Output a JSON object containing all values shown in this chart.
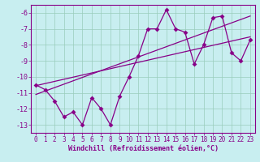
{
  "xlabel": "Windchill (Refroidissement éolien,°C)",
  "bg_color": "#c8eef0",
  "grid_color": "#99ccbb",
  "line_color": "#880088",
  "spine_color": "#880088",
  "x_values": [
    0,
    1,
    2,
    3,
    4,
    5,
    6,
    7,
    8,
    9,
    10,
    11,
    12,
    13,
    14,
    15,
    16,
    17,
    18,
    19,
    20,
    21,
    22,
    23
  ],
  "y_zigzag": [
    -10.5,
    -10.8,
    -11.5,
    -12.5,
    -12.2,
    -13.0,
    -11.3,
    -12.0,
    -13.0,
    -11.2,
    -10.0,
    -8.7,
    -7.0,
    -7.0,
    -5.8,
    -7.0,
    -7.2,
    -9.2,
    -8.0,
    -6.3,
    -6.2,
    -8.5,
    -9.0,
    -7.7
  ],
  "trend1_x": [
    0,
    23
  ],
  "trend1_y": [
    -10.55,
    -7.5
  ],
  "trend2_x": [
    0,
    23
  ],
  "trend2_y": [
    -11.1,
    -6.2
  ],
  "ylim": [
    -13.5,
    -5.5
  ],
  "yticks": [
    -13,
    -12,
    -11,
    -10,
    -9,
    -8,
    -7,
    -6
  ],
  "xticks": [
    0,
    1,
    2,
    3,
    4,
    5,
    6,
    7,
    8,
    9,
    10,
    11,
    12,
    13,
    14,
    15,
    16,
    17,
    18,
    19,
    20,
    21,
    22,
    23
  ],
  "tick_fontsize": 5.5,
  "xlabel_fontsize": 6,
  "marker_size": 3.0,
  "line_width": 0.9
}
